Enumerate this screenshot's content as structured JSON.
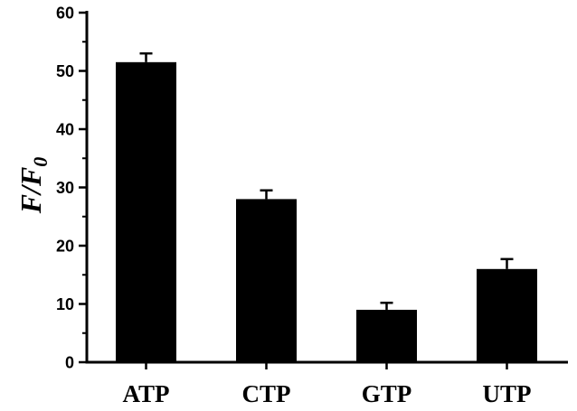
{
  "chart_data": {
    "type": "bar",
    "title": "",
    "xlabel": "",
    "ylabel": "F/F0",
    "ylabel_parts": {
      "main": "F/F",
      "subscript": "0"
    },
    "categories": [
      "ATP",
      "CTP",
      "GTP",
      "UTP"
    ],
    "values": [
      51.5,
      28,
      9,
      16
    ],
    "errors": [
      1.5,
      1.5,
      1.2,
      1.7
    ],
    "ylim": [
      0,
      60
    ],
    "yticks": [
      0,
      10,
      20,
      30,
      40,
      50,
      60
    ],
    "ytick_labels": [
      "0",
      "10",
      "20",
      "30",
      "40",
      "50",
      "60"
    ],
    "grid": false,
    "legend": "none",
    "bar_color": "#000000"
  }
}
